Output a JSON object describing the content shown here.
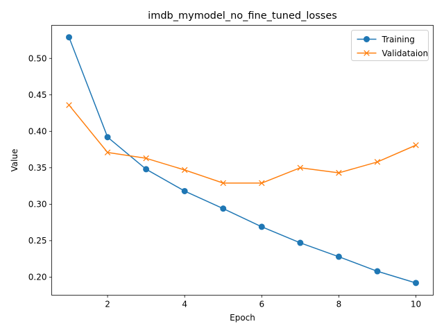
{
  "chart_data": {
    "type": "line",
    "title": "imdb_mymodel_no_fine_tuned_losses",
    "xlabel": "Epoch",
    "ylabel": "Value",
    "x": [
      1,
      2,
      3,
      4,
      5,
      6,
      7,
      8,
      9,
      10
    ],
    "xlim": [
      0.55,
      10.45
    ],
    "ylim": [
      0.1752,
      0.5454
    ],
    "xticks": [
      2,
      4,
      6,
      8,
      10
    ],
    "yticks": [
      0.2,
      0.25,
      0.3,
      0.35,
      0.4,
      0.45,
      0.5
    ],
    "xtick_labels": [
      "2",
      "4",
      "6",
      "8",
      "10"
    ],
    "ytick_labels": [
      "0.20",
      "0.25",
      "0.30",
      "0.35",
      "0.40",
      "0.45",
      "0.50"
    ],
    "grid": false,
    "legend_position": "top-right",
    "series": [
      {
        "name": "Training",
        "color": "#1f77b4",
        "marker": "circle",
        "values": [
          0.529,
          0.392,
          0.348,
          0.318,
          0.294,
          0.269,
          0.247,
          0.228,
          0.208,
          0.192
        ]
      },
      {
        "name": "Validataion",
        "color": "#ff7f0e",
        "marker": "x",
        "values": [
          0.436,
          0.371,
          0.363,
          0.347,
          0.329,
          0.329,
          0.35,
          0.343,
          0.358,
          0.381
        ]
      }
    ]
  }
}
